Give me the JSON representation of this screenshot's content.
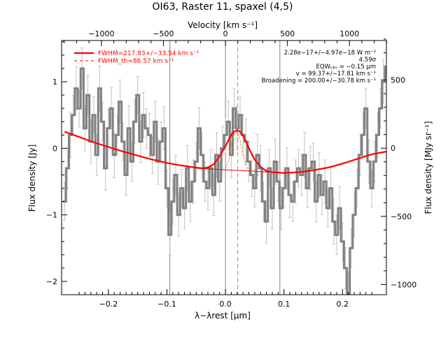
{
  "chart_data": {
    "type": "line",
    "title": "OI63, Raster 11, spaxel (4,5)",
    "xlabel": "λ−λrest [μm]",
    "x2label": "Velocity [km s⁻¹]",
    "ylabel": "Flux density [Jy]",
    "y2label": "Flux density [MJy sr⁻¹]",
    "xlim": [
      -0.28,
      0.275
    ],
    "ylim": [
      -2.2,
      1.62
    ],
    "vlim": [
      -1321,
      1298
    ],
    "y2lim": [
      -1075,
      790
    ],
    "xticks": [
      -0.2,
      -0.1,
      0.0,
      0.1,
      0.2
    ],
    "xtick_labels": [
      "−0.2",
      "−0.1",
      "0.0",
      "0.1",
      "0.2"
    ],
    "yticks": [
      -2,
      -1,
      0,
      1
    ],
    "ytick_labels": [
      "−2",
      "−1",
      "0",
      "1"
    ],
    "vticks": [
      -1000,
      -500,
      0,
      500,
      1000
    ],
    "vtick_labels": [
      "−1000",
      "−500",
      "0",
      "500",
      "1000"
    ],
    "y2ticks": [
      -1000,
      -500,
      0,
      500
    ],
    "y2tick_labels": [
      "−1000",
      "−500",
      "0",
      "500"
    ],
    "vertical_lines": [
      -0.095,
      0.0,
      0.093
    ],
    "center_line": 0.021,
    "legend": [
      {
        "label": "FWHM=217.83+/−33.54 km s⁻¹",
        "color": "#ff0000",
        "style": "solid"
      },
      {
        "label": "FWHM_th=86.57 km s⁻¹",
        "color": "#ff0000",
        "style": "dashed"
      }
    ],
    "annotations": [
      "2.28e−17+/−4.97e−18 W m⁻²",
      "4.59σ",
      "EQWₒᵦₛ = −0.15 μm",
      "v = 99.37+/−17.81 km s⁻¹",
      "Broadening = 200.00+/−30.78 km s⁻¹"
    ],
    "series": [
      {
        "color": "#808080",
        "style": "step",
        "x": [
          -0.275,
          -0.27,
          -0.265,
          -0.26,
          -0.255,
          -0.25,
          -0.245,
          -0.24,
          -0.235,
          -0.23,
          -0.225,
          -0.22,
          -0.215,
          -0.21,
          -0.205,
          -0.2,
          -0.195,
          -0.19,
          -0.185,
          -0.18,
          -0.175,
          -0.17,
          -0.165,
          -0.16,
          -0.155,
          -0.15,
          -0.145,
          -0.14,
          -0.135,
          -0.13,
          -0.125,
          -0.12,
          -0.115,
          -0.11,
          -0.105,
          -0.1,
          -0.095,
          -0.09,
          -0.085,
          -0.08,
          -0.075,
          -0.07,
          -0.065,
          -0.06,
          -0.055,
          -0.05,
          -0.045,
          -0.04,
          -0.035,
          -0.03,
          -0.025,
          -0.02,
          -0.015,
          -0.01,
          -0.005,
          0.0,
          0.005,
          0.01,
          0.015,
          0.02,
          0.025,
          0.03,
          0.035,
          0.04,
          0.045,
          0.05,
          0.055,
          0.06,
          0.065,
          0.07,
          0.075,
          0.08,
          0.085,
          0.09,
          0.095,
          0.1,
          0.105,
          0.11,
          0.115,
          0.12,
          0.125,
          0.13,
          0.135,
          0.14,
          0.145,
          0.15,
          0.155,
          0.16,
          0.165,
          0.17,
          0.175,
          0.18,
          0.185,
          0.19,
          0.195,
          0.2,
          0.205,
          0.21,
          0.215,
          0.22,
          0.225,
          0.23,
          0.235,
          0.24,
          0.245,
          0.25,
          0.255,
          0.26,
          0.265,
          0.27,
          0.275
        ],
        "values": [
          -0.8,
          -0.3,
          0.2,
          0.5,
          0.9,
          0.6,
          1.2,
          0.3,
          0.8,
          0.1,
          0.5,
          -0.1,
          0.9,
          0.4,
          -0.3,
          0.3,
          0.6,
          -0.1,
          0.2,
          0.7,
          0.1,
          -0.4,
          0.3,
          -0.2,
          0.4,
          0.8,
          0.1,
          0.5,
          0.3,
          0.2,
          -0.1,
          0.4,
          -0.2,
          0.1,
          0.3,
          -0.6,
          -1.3,
          -0.8,
          -0.4,
          -1.0,
          -0.6,
          -0.9,
          -0.3,
          -0.8,
          -0.5,
          -0.2,
          0.3,
          -0.1,
          -0.5,
          -0.6,
          -0.3,
          -0.7,
          -0.1,
          -0.5,
          0.0,
          0.2,
          0.4,
          -0.1,
          0.6,
          0.3,
          0.5,
          0.2,
          0.1,
          -0.2,
          -0.4,
          -0.6,
          -0.1,
          -0.3,
          -0.8,
          -1.1,
          -0.3,
          -0.9,
          -0.2,
          -0.5,
          -0.9,
          -0.6,
          -0.3,
          -0.7,
          -0.8,
          -0.5,
          -0.3,
          -0.4,
          -0.1,
          -0.6,
          -0.3,
          -0.2,
          -0.8,
          -0.4,
          -0.7,
          -0.5,
          -0.9,
          -0.6,
          -1.1,
          -1.3,
          -0.9,
          -1.4,
          -1.8,
          -2.2,
          -1.5,
          -1.0,
          -0.6,
          -0.1,
          0.2,
          0.6,
          -0.2,
          -0.6,
          -0.2,
          0.2,
          0.6,
          1.0,
          1.2
        ]
      },
      {
        "color": "#ff0000",
        "style": "solid",
        "x": [
          -0.275,
          -0.25,
          -0.225,
          -0.2,
          -0.175,
          -0.15,
          -0.125,
          -0.1,
          -0.075,
          -0.05,
          -0.04,
          -0.03,
          -0.02,
          -0.01,
          0.0,
          0.005,
          0.01,
          0.015,
          0.02,
          0.025,
          0.03,
          0.035,
          0.04,
          0.05,
          0.06,
          0.07,
          0.08,
          0.1,
          0.125,
          0.15,
          0.175,
          0.2,
          0.225,
          0.25,
          0.275
        ],
        "values": [
          0.25,
          0.17,
          0.09,
          0.02,
          -0.05,
          -0.11,
          -0.17,
          -0.22,
          -0.26,
          -0.29,
          -0.3,
          -0.29,
          -0.24,
          -0.12,
          0.03,
          0.12,
          0.2,
          0.25,
          0.27,
          0.25,
          0.19,
          0.1,
          0.0,
          -0.17,
          -0.28,
          -0.34,
          -0.36,
          -0.37,
          -0.36,
          -0.33,
          -0.29,
          -0.23,
          -0.16,
          -0.09,
          -0.05
        ]
      },
      {
        "color": "#ff8000",
        "style": "dashed",
        "x": [
          0.0,
          0.005,
          0.01,
          0.015,
          0.02,
          0.025,
          0.03,
          0.035,
          0.04,
          0.045
        ],
        "values": [
          -0.31,
          -0.2,
          0.05,
          0.22,
          0.25,
          0.12,
          -0.08,
          -0.26,
          -0.33,
          -0.35
        ]
      }
    ]
  }
}
